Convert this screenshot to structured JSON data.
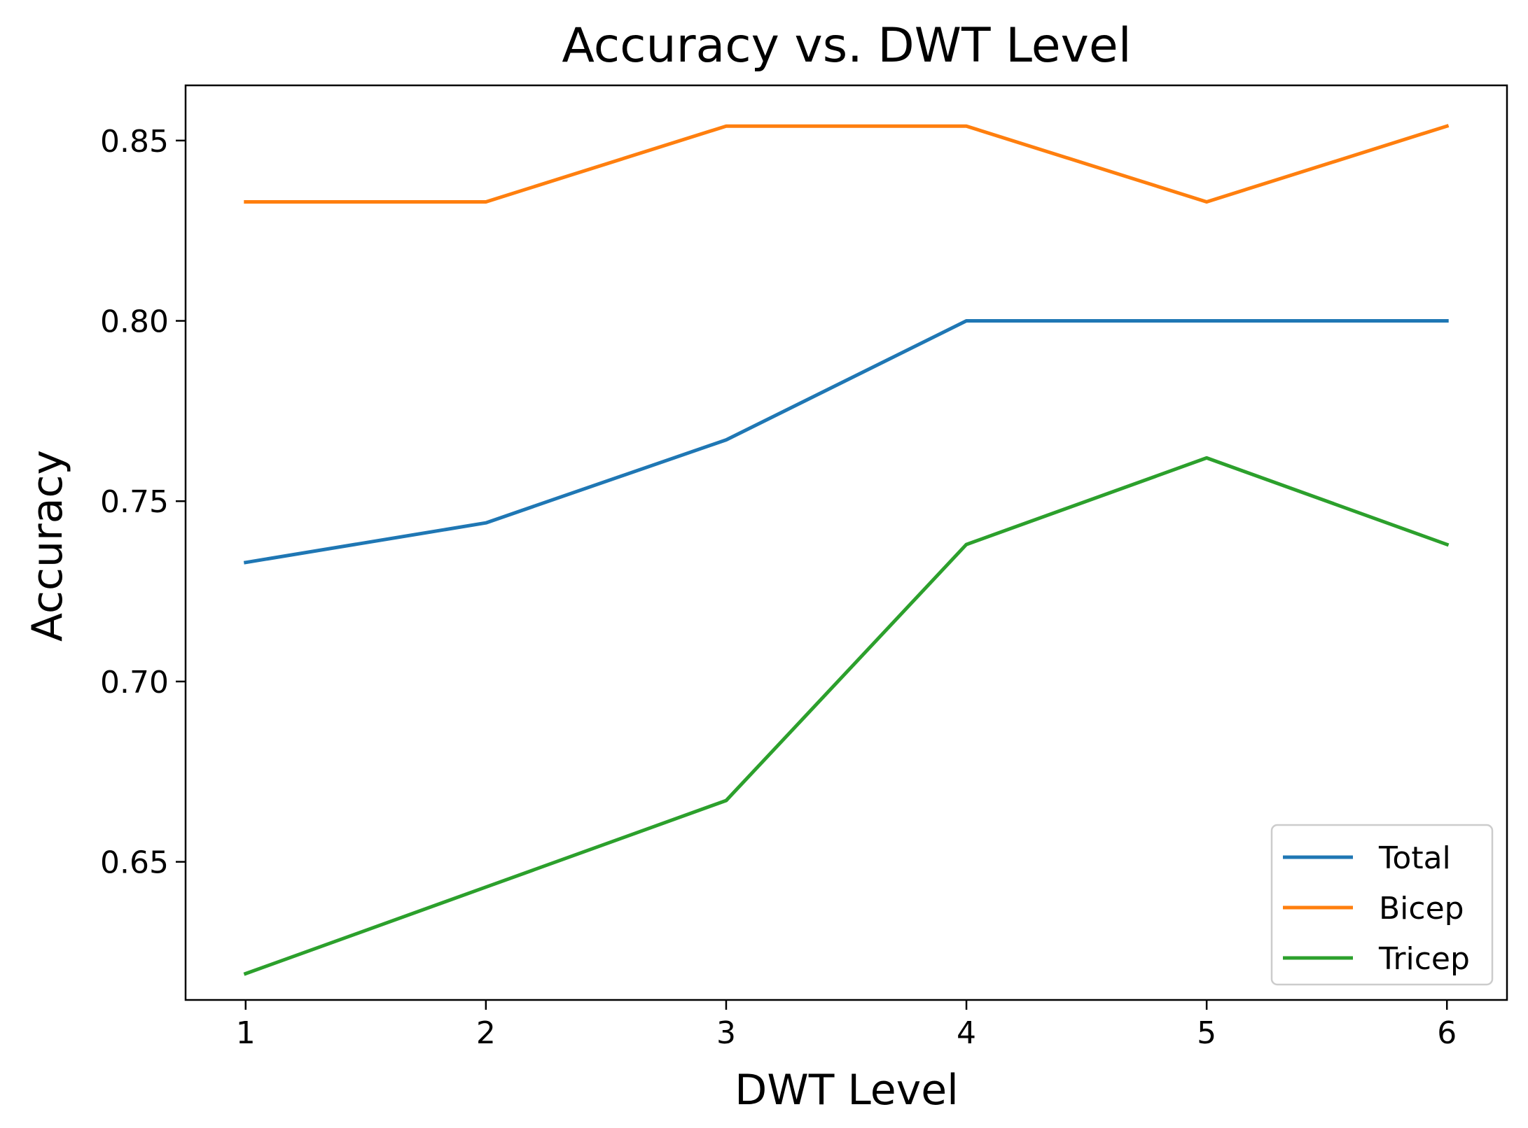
{
  "chart_data": {
    "type": "line",
    "title": "Accuracy vs. DWT Level",
    "xlabel": "DWT Level",
    "ylabel": "Accuracy",
    "x": [
      1,
      2,
      3,
      4,
      5,
      6
    ],
    "xticks": [
      "1",
      "2",
      "3",
      "4",
      "5",
      "6"
    ],
    "yticks": [
      "0.65",
      "0.70",
      "0.75",
      "0.80",
      "0.85"
    ],
    "ytick_values": [
      0.65,
      0.7,
      0.75,
      0.8,
      0.85
    ],
    "xlim": [
      0.75,
      6.25
    ],
    "ylim": [
      0.6117,
      0.8653
    ],
    "grid": false,
    "legend_position": "lower right",
    "series": [
      {
        "name": "Total",
        "color": "#1f77b4",
        "values": [
          0.733,
          0.744,
          0.767,
          0.8,
          0.8,
          0.8
        ]
      },
      {
        "name": "Bicep",
        "color": "#ff7f0e",
        "values": [
          0.833,
          0.833,
          0.854,
          0.854,
          0.833,
          0.854
        ]
      },
      {
        "name": "Tricep",
        "color": "#2ca02c",
        "values": [
          0.619,
          0.643,
          0.667,
          0.738,
          0.762,
          0.738
        ]
      }
    ]
  }
}
